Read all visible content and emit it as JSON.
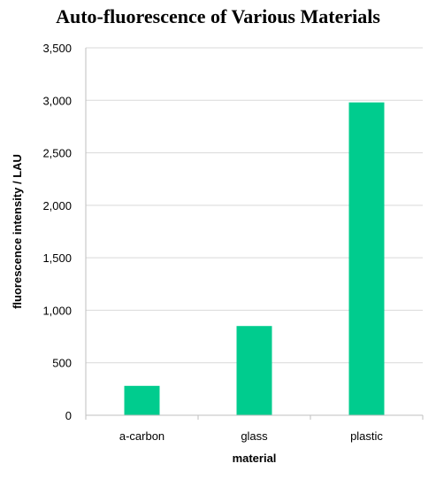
{
  "chart_data": {
    "type": "bar",
    "title": "Auto-fluorescence of Various Materials",
    "xlabel": "material",
    "ylabel": "fluorescence intensity / LAU",
    "categories": [
      "a-carbon",
      "glass",
      "plastic"
    ],
    "values": [
      280,
      850,
      2980
    ],
    "ylim": [
      0,
      3500
    ],
    "yticks": [
      0,
      500,
      1000,
      1500,
      2000,
      2500,
      3000,
      3500
    ],
    "ytick_labels": [
      "0",
      "500",
      "1,000",
      "1,500",
      "2,000",
      "2,500",
      "3,000",
      "3,500"
    ],
    "grid": true,
    "legend": "none",
    "bar_color": "#00CC8E",
    "grid_color": "#D9D9D9",
    "axis_color": "#BFBFBF"
  }
}
